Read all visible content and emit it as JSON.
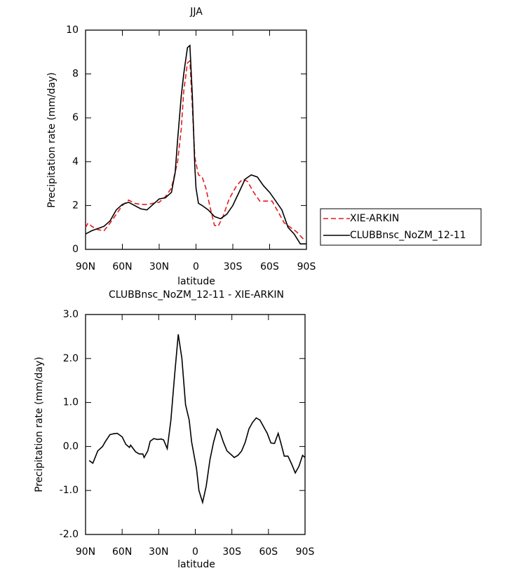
{
  "chart_data": [
    {
      "type": "line",
      "title": "JJA",
      "xlabel": "latitude",
      "ylabel": "Precipitation rate (mm/day)",
      "xlim": [
        90,
        -90
      ],
      "xticks": [
        {
          "value": 90,
          "label": "90N"
        },
        {
          "value": 60,
          "label": "60N"
        },
        {
          "value": 30,
          "label": "30N"
        },
        0,
        {
          "value": -30,
          "label": "30S"
        },
        {
          "value": -60,
          "label": "60S"
        },
        {
          "value": -90,
          "label": "90S"
        }
      ],
      "ylim": [
        0,
        10
      ],
      "yticks": [
        0,
        2,
        4,
        6,
        8,
        10
      ],
      "legend": "right",
      "series": [
        {
          "name": "XIE-ARKIN",
          "color": "#e41a1c",
          "dash": true,
          "x": [
            90,
            88,
            85,
            80,
            75,
            70,
            65,
            60,
            55,
            50,
            45,
            40,
            35,
            30,
            25,
            20,
            15,
            12,
            10,
            7,
            5,
            3,
            1,
            -2,
            -5,
            -8,
            -12,
            -15,
            -18,
            -22,
            -27,
            -33,
            -38,
            -42,
            -47,
            -52,
            -57,
            -62,
            -67,
            -72,
            -77,
            -82,
            -87,
            -90
          ],
          "values": [
            1.0,
            1.2,
            1.05,
            0.9,
            0.85,
            1.2,
            1.6,
            2.0,
            2.25,
            2.1,
            2.05,
            2.05,
            2.1,
            2.15,
            2.4,
            2.8,
            4.0,
            5.5,
            7.2,
            8.5,
            8.6,
            6.5,
            4.2,
            3.4,
            3.3,
            2.8,
            1.8,
            1.1,
            1.05,
            1.5,
            2.3,
            2.9,
            3.2,
            3.1,
            2.6,
            2.2,
            2.2,
            2.2,
            1.7,
            1.2,
            1.0,
            0.8,
            0.5,
            0.5
          ]
        },
        {
          "name": "CLUBBnsc_NoZM_12-11",
          "color": "#000000",
          "dash": false,
          "x": [
            90,
            85,
            80,
            75,
            70,
            65,
            60,
            55,
            50,
            45,
            40,
            35,
            30,
            25,
            20,
            17,
            15,
            12,
            10,
            7,
            5,
            3,
            1,
            0,
            -2,
            -5,
            -10,
            -15,
            -20,
            -25,
            -30,
            -35,
            -40,
            -45,
            -50,
            -55,
            -60,
            -65,
            -70,
            -75,
            -80,
            -85,
            -90
          ],
          "values": [
            0.7,
            0.85,
            0.95,
            1.05,
            1.3,
            1.8,
            2.05,
            2.15,
            2.0,
            1.85,
            1.8,
            2.05,
            2.3,
            2.35,
            2.6,
            3.5,
            5.0,
            7.0,
            8.0,
            9.2,
            9.3,
            7.0,
            3.8,
            2.8,
            2.1,
            2.0,
            1.8,
            1.5,
            1.4,
            1.6,
            2.0,
            2.6,
            3.2,
            3.4,
            3.3,
            2.9,
            2.6,
            2.2,
            1.8,
            1.0,
            0.7,
            0.25,
            0.25
          ]
        }
      ]
    },
    {
      "type": "line",
      "title": "CLUBBnsc_NoZM_12-11 - XIE-ARKIN",
      "xlabel": "latitude",
      "ylabel": "Precipitation rate (mm/day)",
      "xlim": [
        90,
        -90
      ],
      "xticks": [
        {
          "value": 90,
          "label": "90N"
        },
        {
          "value": 60,
          "label": "60N"
        },
        {
          "value": 30,
          "label": "30N"
        },
        0,
        {
          "value": -30,
          "label": "30S"
        },
        {
          "value": -60,
          "label": "60S"
        },
        {
          "value": -90,
          "label": "90S"
        }
      ],
      "ylim": [
        -2,
        3
      ],
      "yticks": [
        {
          "value": -2,
          "label": "-2.0"
        },
        {
          "value": -1,
          "label": "-1.0"
        },
        {
          "value": 0,
          "label": "0.0"
        },
        {
          "value": 1,
          "label": "1.0"
        },
        {
          "value": 2,
          "label": "2.0"
        },
        {
          "value": 3,
          "label": "3.0"
        }
      ],
      "color": "#000000",
      "x": [
        87,
        84,
        80,
        76,
        74,
        70,
        67,
        64,
        60,
        57,
        54,
        53,
        49,
        46,
        43,
        42,
        39,
        37,
        34,
        31,
        28,
        26,
        23,
        20,
        17,
        14,
        11,
        8,
        5,
        3,
        -1,
        -3,
        -6,
        -9,
        -12,
        -15,
        -18,
        -20,
        -23,
        -26,
        -30,
        -32,
        -35,
        -38,
        -41,
        -44,
        -47,
        -50,
        -53,
        -56,
        -59,
        -62,
        -65,
        -68,
        -70,
        -73,
        -76,
        -79,
        -82,
        -85,
        -88,
        -90
      ],
      "values": [
        -0.32,
        -0.38,
        -0.1,
        0.0,
        0.1,
        0.27,
        0.29,
        0.3,
        0.22,
        0.05,
        -0.02,
        0.03,
        -0.12,
        -0.17,
        -0.17,
        -0.25,
        -0.1,
        0.12,
        0.18,
        0.16,
        0.17,
        0.15,
        -0.05,
        0.6,
        1.6,
        2.55,
        2.0,
        0.95,
        0.6,
        0.1,
        -0.5,
        -1.0,
        -1.27,
        -0.9,
        -0.3,
        0.1,
        0.4,
        0.35,
        0.1,
        -0.1,
        -0.2,
        -0.25,
        -0.2,
        -0.1,
        0.1,
        0.4,
        0.55,
        0.65,
        0.6,
        0.45,
        0.3,
        0.08,
        0.07,
        0.3,
        0.1,
        -0.22,
        -0.22,
        -0.4,
        -0.6,
        -0.45,
        -0.2,
        -0.25
      ]
    }
  ]
}
